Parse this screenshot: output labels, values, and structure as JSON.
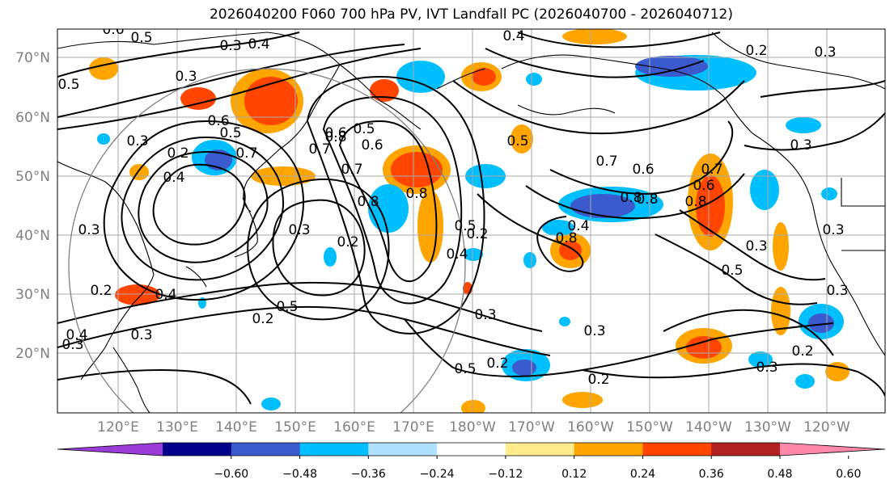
{
  "title": "2026040200 F060 700 hPa PV, IVT Landfall PC (2026040700 - 2026040712)",
  "lat_labels": [
    "70°N",
    "60°N",
    "50°N",
    "40°N",
    "30°N",
    "20°N"
  ],
  "lon_labels": [
    "120°E",
    "130°E",
    "140°E",
    "150°E",
    "160°E",
    "170°E",
    "180°W",
    "170°W",
    "160°W",
    "150°W",
    "140°W",
    "130°W",
    "120°W"
  ],
  "colorbar": {
    "colors": [
      "#9a3cd6",
      "#00008b",
      "#3a5acd",
      "#00bfff",
      "#b0e2ff",
      "#ffffff",
      "#ffec8b",
      "#ffa500",
      "#ff4500",
      "#b22222",
      "#ff88aa"
    ],
    "ticks": [
      "−0.60",
      "−0.48",
      "−0.36",
      "−0.24",
      "−0.12",
      "0.12",
      "0.24",
      "0.36",
      "0.48",
      "0.60"
    ]
  },
  "contour_labels": [
    "0.6",
    "0.5",
    "0.3",
    "0.4",
    "0.3",
    "0.6",
    "0.5",
    "0.7",
    "0.2",
    "0.4",
    "0.5",
    "0.3",
    "0.3",
    "0.2",
    "0.4",
    "0.3",
    "0.5",
    "0.8",
    "0.7",
    "0.6",
    "0.7",
    "0.5",
    "0.8",
    "0.6",
    "0.8",
    "0.3",
    "0.2",
    "0.5",
    "0.4",
    "0.8",
    "0.4",
    "0.7",
    "0.6",
    "0.5",
    "0.3",
    "0.2",
    "0.8",
    "0.8",
    "0.3",
    "0.5",
    "0.3",
    "0.7",
    "0.6",
    "0.8",
    "0.5",
    "0.3",
    "0.2",
    "0.3",
    "0.3",
    "0.3",
    "0.2",
    "0.2",
    "0.4",
    "0.3",
    "0.2",
    "0.3",
    "0.2",
    "0.4"
  ],
  "grid_color": "#aaaaaa",
  "axis_label_color": "#808080"
}
